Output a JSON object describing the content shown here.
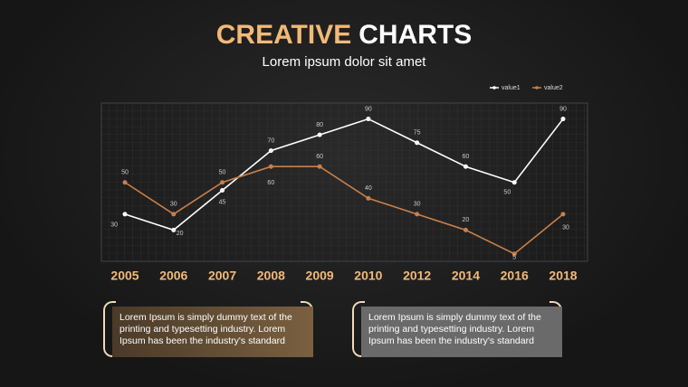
{
  "chart_data": {
    "type": "line",
    "title_highlight": "CREATIVE",
    "title": "CHARTS",
    "subtitle": "Lorem ipsum dolor sit amet",
    "categories": [
      "2005",
      "2006",
      "2007",
      "2008",
      "2009",
      "2010",
      "2012",
      "2014",
      "2016",
      "2018"
    ],
    "series": [
      {
        "name": "value1",
        "color": "#ffffff",
        "values": [
          30,
          20,
          45,
          70,
          80,
          90,
          75,
          60,
          50,
          90
        ]
      },
      {
        "name": "value2",
        "color": "#c9804a",
        "values": [
          50,
          30,
          50,
          60,
          60,
          40,
          30,
          20,
          5,
          30
        ]
      }
    ],
    "ylim": [
      0,
      100
    ],
    "legend": "top-right"
  },
  "text_boxes": [
    "Lorem Ipsum is simply dummy text of the printing and typesetting industry. Lorem Ipsum has been the industry's standard",
    "Lorem Ipsum is simply dummy text of the printing and typesetting industry. Lorem Ipsum has been the industry's standard"
  ]
}
